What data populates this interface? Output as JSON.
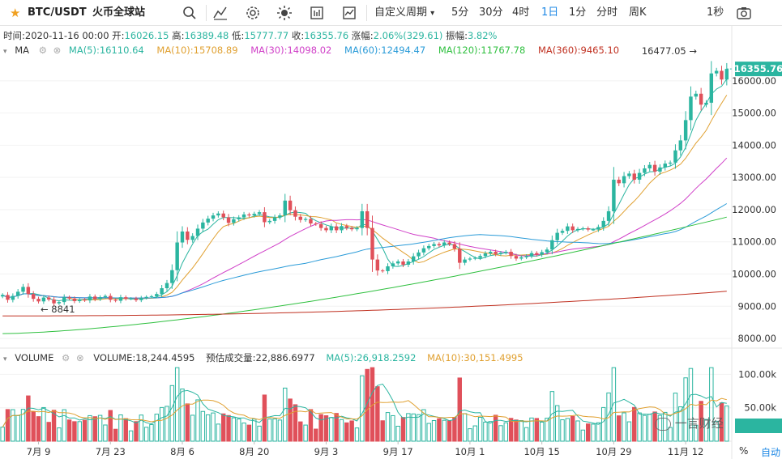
{
  "toolbar": {
    "symbol": "BTC/USDT",
    "exchange": "火币全球站",
    "icons": [
      "star-icon",
      "search-icon",
      "indicator-icon",
      "gear-icon",
      "theme-icon",
      "compare-icon",
      "fullscreen-chart-icon",
      "camera-icon"
    ],
    "custom_period": "自定义周期",
    "periods": [
      "5分",
      "30分",
      "4时",
      "1日",
      "1分",
      "分时",
      "周K"
    ],
    "active_period": "1日",
    "refresh": "1秒"
  },
  "info": {
    "time_label": "时间:",
    "time": "2020-11-16 00:00",
    "open_label": "开:",
    "open": "16026.15",
    "high_label": "高:",
    "high": "16389.48",
    "low_label": "低:",
    "low": "15777.77",
    "close_label": "收:",
    "close": "16355.76",
    "change_label": "涨幅:",
    "change": "2.06%(329.61)",
    "amplitude_label": "振幅:",
    "amplitude": "3.82%"
  },
  "ma_legend": {
    "title": "MA",
    "items": [
      {
        "label": "MA(5):16110.64",
        "color": "#2bb5a0"
      },
      {
        "label": "MA(10):15708.89",
        "color": "#e0a030"
      },
      {
        "label": "MA(30):14098.02",
        "color": "#d040c8"
      },
      {
        "label": "MA(60):12494.47",
        "color": "#2a9bd8"
      },
      {
        "label": "MA(120):11767.78",
        "color": "#30c040"
      },
      {
        "label": "MA(360):9465.10",
        "color": "#c03020"
      }
    ]
  },
  "vol_legend": {
    "title": "VOLUME",
    "items": [
      {
        "label": "VOLUME:18,244.4595",
        "color": "#333333"
      },
      {
        "label": "预估成交量:22,886.6977",
        "color": "#333333"
      },
      {
        "label": "MA(5):26,918.2592",
        "color": "#2bb5a0"
      },
      {
        "label": "MA(10):30,151.4995",
        "color": "#e0a030"
      }
    ]
  },
  "price_labels": {
    "current": "16355.76",
    "high_mark": "16477.05",
    "low_mark": "8841"
  },
  "bottom": {
    "percent": "%",
    "auto": "自动"
  },
  "watermark": "一言财经",
  "chart_data": {
    "type": "candlestick",
    "x_ticks": [
      "7月 9",
      "7月 23",
      "8月 6",
      "8月 20",
      "9月 3",
      "9月 17",
      "10月 1",
      "10月 15",
      "10月 29",
      "11月 12"
    ],
    "price_axis": {
      "ticks": [
        8000,
        9000,
        10000,
        11000,
        12000,
        13000,
        14000,
        15000,
        16000
      ],
      "labels": [
        "8000.00",
        "9000.00",
        "10000.00",
        "11000.00",
        "12000.00",
        "13000.00",
        "14000.00",
        "15000.00",
        "16000.00"
      ],
      "ylim": [
        7700,
        16700
      ]
    },
    "volume_axis": {
      "ticks": [
        50000,
        100000
      ],
      "labels": [
        "50.00k",
        "100.00k"
      ],
      "ylim": [
        0,
        115000
      ]
    },
    "close_series": [
      9350,
      9200,
      9320,
      9450,
      9600,
      9380,
      9230,
      9150,
      9270,
      9210,
      9090,
      9130,
      9280,
      9240,
      9160,
      9210,
      9180,
      9300,
      9220,
      9280,
      9320,
      9200,
      9170,
      9280,
      9230,
      9240,
      9190,
      9260,
      9290,
      9310,
      9380,
      9560,
      9720,
      10120,
      10980,
      11320,
      11060,
      11180,
      11410,
      11600,
      11720,
      11820,
      11880,
      11760,
      11590,
      11700,
      11760,
      11850,
      11820,
      11870,
      11920,
      11610,
      11650,
      11760,
      11820,
      12280,
      11980,
      11780,
      11680,
      11710,
      11570,
      11550,
      11430,
      11360,
      11480,
      11360,
      11490,
      11430,
      11390,
      11430,
      11950,
      11430,
      10450,
      10110,
      10090,
      10240,
      10330,
      10390,
      10290,
      10390,
      10550,
      10670,
      10800,
      10870,
      10930,
      10890,
      10980,
      10930,
      10790,
      10350,
      10450,
      10480,
      10500,
      10560,
      10640,
      10690,
      10620,
      10660,
      10690,
      10560,
      10480,
      10520,
      10560,
      10650,
      10600,
      10680,
      10760,
      11050,
      11280,
      11340,
      11480,
      11360,
      11400,
      11420,
      11380,
      11380,
      11460,
      11650,
      11950,
      12930,
      12820,
      13040,
      13120,
      12930,
      13140,
      13280,
      13390,
      13180,
      13310,
      13430,
      13460,
      13840,
      14150,
      14780,
      15510,
      15600,
      15260,
      15320,
      16230,
      16310,
      16040,
      16370
    ],
    "ma_series": [
      {
        "name": "MA(5)",
        "color": "#2bb5a0",
        "period": 5
      },
      {
        "name": "MA(10)",
        "color": "#e0a030",
        "period": 10
      },
      {
        "name": "MA(30)",
        "color": "#d040c8",
        "period": 30
      },
      {
        "name": "MA(60)",
        "color": "#2a9bd8",
        "period": 60
      },
      {
        "name": "MA(120)",
        "color": "#30c040",
        "period": 120
      },
      {
        "name": "MA(360)",
        "color": "#c03020",
        "period": 360
      }
    ],
    "colors": {
      "up": "#2bb5a0",
      "down": "#e0505a"
    }
  }
}
